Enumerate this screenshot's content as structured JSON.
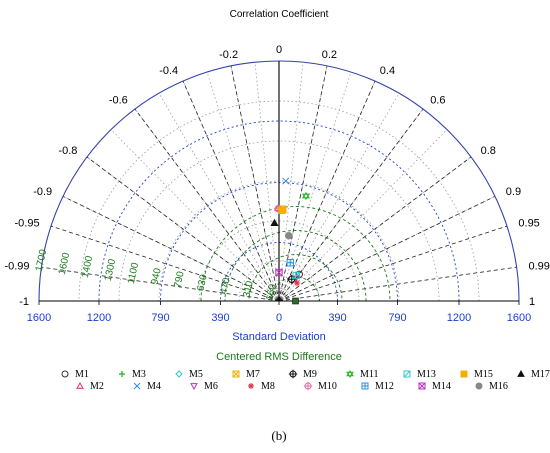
{
  "chart_data": {
    "type": "scatter",
    "subtype": "taylor-diagram",
    "title": "Correlation Coefficient",
    "xlabel": "Standard Deviation",
    "rms_label": "Centered RMS Difference",
    "caption": "(b)",
    "std_max": 1600,
    "x_ticks": [
      {
        "v": -1600,
        "label": "1600"
      },
      {
        "v": -1200,
        "label": "1200"
      },
      {
        "v": -790,
        "label": "790"
      },
      {
        "v": -390,
        "label": "390"
      },
      {
        "v": 0,
        "label": "0"
      },
      {
        "v": 390,
        "label": "390"
      },
      {
        "v": 790,
        "label": "790"
      },
      {
        "v": 1200,
        "label": "1200"
      },
      {
        "v": 1600,
        "label": "1600"
      }
    ],
    "std_circles": [
      390,
      790,
      1200
    ],
    "correlation_ticks": [
      {
        "r": -1,
        "label": "-1"
      },
      {
        "r": -0.99,
        "label": "-0.99"
      },
      {
        "r": -0.95,
        "label": "-0.95"
      },
      {
        "r": -0.9,
        "label": "-0.9"
      },
      {
        "r": -0.8,
        "label": "-0.8"
      },
      {
        "r": -0.6,
        "label": "-0.6"
      },
      {
        "r": -0.4,
        "label": "-0.4"
      },
      {
        "r": -0.2,
        "label": "-0.2"
      },
      {
        "r": 0,
        "label": "0"
      },
      {
        "r": 0.2,
        "label": "0.2"
      },
      {
        "r": 0.4,
        "label": "0.4"
      },
      {
        "r": 0.6,
        "label": "0.6"
      },
      {
        "r": 0.8,
        "label": "0.8"
      },
      {
        "r": 0.9,
        "label": "0.9"
      },
      {
        "r": 0.95,
        "label": "0.95"
      },
      {
        "r": 0.99,
        "label": "0.99"
      },
      {
        "r": 1,
        "label": "1"
      }
    ],
    "reference_std": 110,
    "rms_labels": [
      "1700",
      "1600",
      "1400",
      "1300",
      "1100",
      "940",
      "790",
      "630",
      "470",
      "310",
      "160"
    ],
    "rms_circles": [
      160,
      310,
      470,
      630
    ],
    "series": [
      {
        "name": "M1",
        "x": 135,
        "y": 178,
        "symbol": "circle-open",
        "color": "#333333"
      },
      {
        "name": "M2",
        "x": -5,
        "y": 620,
        "symbol": "triangle-up-open",
        "color": "#e0306a"
      },
      {
        "name": "M3",
        "x": 15,
        "y": 608,
        "symbol": "plus",
        "color": "#22b822"
      },
      {
        "name": "M4",
        "x": 45,
        "y": 800,
        "symbol": "x",
        "color": "#2e8fdc"
      },
      {
        "name": "M5",
        "x": 20,
        "y": 610,
        "symbol": "diamond-open",
        "color": "#2ec8c8"
      },
      {
        "name": "M6",
        "x": 110,
        "y": 150,
        "symbol": "triangle-down-open",
        "color": "#c030c0"
      },
      {
        "name": "M7",
        "x": 25,
        "y": 612,
        "symbol": "square-x",
        "color": "#f0b000"
      },
      {
        "name": "M8",
        "x": 120,
        "y": 120,
        "symbol": "star",
        "color": "#e03040"
      },
      {
        "name": "M9",
        "x": 85,
        "y": 145,
        "symbol": "circle-plus",
        "color": "#111111"
      },
      {
        "name": "M10",
        "x": -5,
        "y": 615,
        "symbol": "circle-plus",
        "color": "#e070a0"
      },
      {
        "name": "M11",
        "x": 180,
        "y": 700,
        "symbol": "star-of-david",
        "color": "#22b822"
      },
      {
        "name": "M12",
        "x": 75,
        "y": 255,
        "symbol": "square-plus",
        "color": "#2e8fdc"
      },
      {
        "name": "M13",
        "x": 115,
        "y": 170,
        "symbol": "square-slash",
        "color": "#2ec8c8"
      },
      {
        "name": "M14",
        "x": 0,
        "y": 190,
        "symbol": "square-x",
        "color": "#c030c0"
      },
      {
        "name": "M15",
        "x": 20,
        "y": 605,
        "symbol": "square-filled",
        "color": "#f0b000"
      },
      {
        "name": "M16",
        "x": 65,
        "y": 435,
        "symbol": "circle-filled",
        "color": "#888888"
      },
      {
        "name": "M17",
        "x": -30,
        "y": 520,
        "symbol": "triangle-up-filled",
        "color": "#111111"
      }
    ]
  }
}
